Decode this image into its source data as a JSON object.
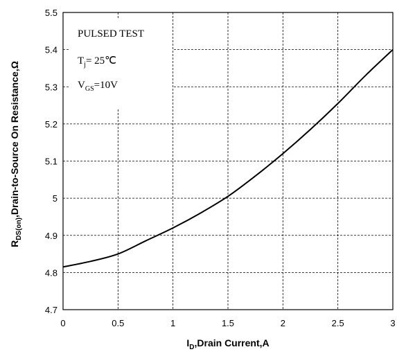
{
  "chart_data": {
    "type": "line",
    "xlim": [
      0,
      3
    ],
    "ylim": [
      4.7,
      5.5
    ],
    "xticks": [
      "0",
      "0.5",
      "1",
      "1.5",
      "2",
      "2.5",
      "3"
    ],
    "yticks": [
      "4.7",
      "4.8",
      "4.9",
      "5",
      "5.1",
      "5.2",
      "5.3",
      "5.4",
      "5.5"
    ],
    "xlabel": {
      "main": "I",
      "sub": "D",
      "rest": ",Drain Current,A"
    },
    "ylabel": {
      "main": "R",
      "sub": "DS(on)",
      "rest": ",Drain-to-Source On Resistance,Ω"
    },
    "annotations": {
      "test": "PULSED TEST",
      "tj_main": "T",
      "tj_sub": "j",
      "tj_rest": "= 25℃",
      "vgs_main": "V",
      "vgs_sub": "GS",
      "vgs_rest": "=10V"
    },
    "grid": true,
    "series": [
      {
        "x": [
          0,
          0.25,
          0.5,
          0.75,
          1.0,
          1.25,
          1.5,
          1.75,
          2.0,
          2.25,
          2.5,
          2.75,
          3.0
        ],
        "y": [
          4.815,
          4.83,
          4.85,
          4.885,
          4.92,
          4.96,
          5.005,
          5.06,
          5.12,
          5.185,
          5.255,
          5.33,
          5.4
        ]
      }
    ]
  }
}
